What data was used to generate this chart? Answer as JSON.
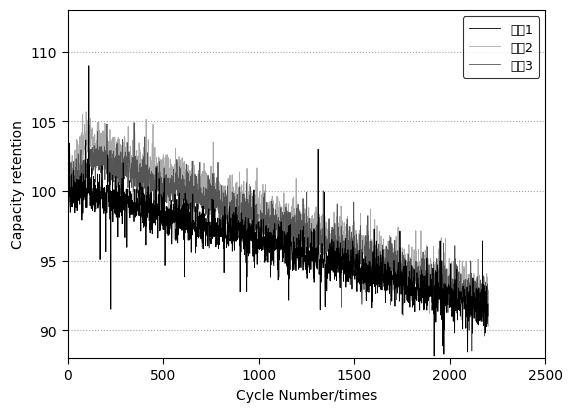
{
  "title": "",
  "xlabel": "Cycle Number/times",
  "ylabel": "Capacity retention",
  "xlim": [
    0,
    2500
  ],
  "ylim": [
    88,
    113
  ],
  "yticks": [
    90,
    95,
    100,
    105,
    110
  ],
  "xticks": [
    0,
    500,
    1000,
    1500,
    2000,
    2500
  ],
  "legend_labels": [
    "方案1",
    "方案2",
    "方案3"
  ],
  "colors": [
    "#000000",
    "#aaaaaa",
    "#555555"
  ],
  "linewidths": [
    0.6,
    0.6,
    0.6
  ],
  "n_points": 2200,
  "background_color": "#ffffff",
  "grid_color": "#999999",
  "grid_style": ":",
  "grid_alpha": 0.9
}
